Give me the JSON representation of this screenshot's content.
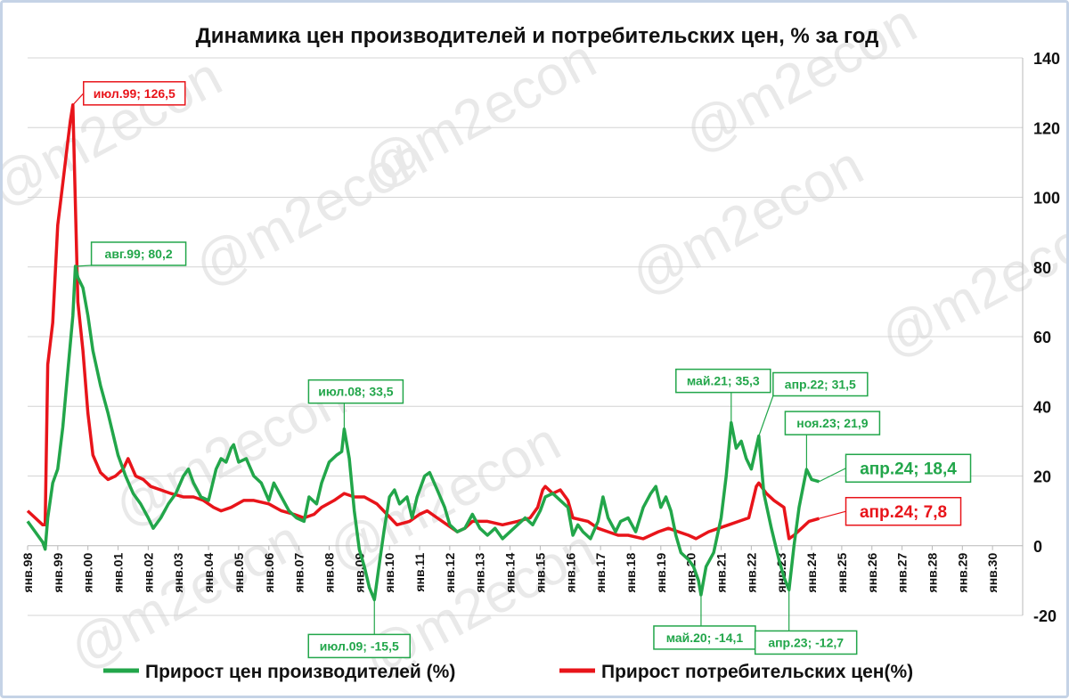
{
  "chart_data": {
    "type": "line",
    "title": "Динамика цен производителей и потребительских цен, % за год",
    "ylim": [
      -20,
      140
    ],
    "y_ticks": [
      "-20",
      "0",
      "20",
      "40",
      "60",
      "80",
      "100",
      "120",
      "140"
    ],
    "y_tick_values": [
      -20,
      0,
      20,
      40,
      60,
      80,
      100,
      120,
      140
    ],
    "y_axis_side": "right",
    "grid": "horizontal",
    "x_ticks": [
      "янв.98",
      "янв.99",
      "янв.00",
      "янв.01",
      "янв.02",
      "янв.03",
      "янв.04",
      "янв.05",
      "янв.06",
      "янв.07",
      "янв.08",
      "янв.09",
      "янв.10",
      "янв.11",
      "янв.12",
      "янв.13",
      "янв.14",
      "янв.15",
      "янв.16",
      "янв.17",
      "янв.18",
      "янв.19",
      "янв.20",
      "янв.21",
      "янв.22",
      "янв.23",
      "янв.24",
      "янв.25",
      "янв.26",
      "янв.27",
      "янв.28",
      "янв.29",
      "янв.30"
    ],
    "x_tick_years": [
      1998,
      1999,
      2000,
      2001,
      2002,
      2003,
      2004,
      2005,
      2006,
      2007,
      2008,
      2009,
      2010,
      2011,
      2012,
      2013,
      2014,
      2015,
      2016,
      2017,
      2018,
      2019,
      2020,
      2021,
      2022,
      2023,
      2024,
      2025,
      2026,
      2027,
      2028,
      2029,
      2030
    ],
    "legend_position": "bottom",
    "series": [
      {
        "name": "Прирост цен производителей (%)",
        "color": "#22a64a",
        "points": [
          [
            "1998-01",
            7
          ],
          [
            "1998-04",
            4
          ],
          [
            "1998-07",
            1
          ],
          [
            "1998-08",
            -1
          ],
          [
            "1998-09",
            8
          ],
          [
            "1998-11",
            18
          ],
          [
            "1999-01",
            22
          ],
          [
            "1999-03",
            34
          ],
          [
            "1999-05",
            50
          ],
          [
            "1999-07",
            66
          ],
          [
            "1999-08",
            80.2
          ],
          [
            "1999-09",
            77
          ],
          [
            "1999-11",
            74
          ],
          [
            "2000-01",
            66
          ],
          [
            "2000-03",
            56
          ],
          [
            "2000-06",
            46
          ],
          [
            "2000-09",
            38
          ],
          [
            "2001-01",
            26
          ],
          [
            "2001-04",
            20
          ],
          [
            "2001-07",
            15
          ],
          [
            "2001-10",
            12
          ],
          [
            "2002-01",
            8
          ],
          [
            "2002-03",
            5
          ],
          [
            "2002-06",
            8
          ],
          [
            "2002-09",
            12
          ],
          [
            "2002-12",
            15
          ],
          [
            "2003-03",
            20
          ],
          [
            "2003-05",
            22
          ],
          [
            "2003-07",
            18
          ],
          [
            "2003-10",
            14
          ],
          [
            "2004-01",
            13
          ],
          [
            "2004-04",
            22
          ],
          [
            "2004-06",
            25
          ],
          [
            "2004-08",
            24
          ],
          [
            "2004-10",
            28
          ],
          [
            "2004-11",
            29
          ],
          [
            "2005-01",
            24
          ],
          [
            "2005-04",
            25
          ],
          [
            "2005-07",
            20
          ],
          [
            "2005-10",
            18
          ],
          [
            "2006-01",
            13
          ],
          [
            "2006-03",
            18
          ],
          [
            "2006-06",
            14
          ],
          [
            "2006-09",
            10
          ],
          [
            "2006-12",
            8
          ],
          [
            "2007-03",
            7
          ],
          [
            "2007-05",
            14
          ],
          [
            "2007-08",
            12
          ],
          [
            "2007-10",
            18
          ],
          [
            "2008-01",
            24
          ],
          [
            "2008-04",
            26
          ],
          [
            "2008-06",
            27
          ],
          [
            "2008-07",
            33.5
          ],
          [
            "2008-09",
            25
          ],
          [
            "2008-11",
            10
          ],
          [
            "2009-01",
            -1
          ],
          [
            "2009-03",
            -6
          ],
          [
            "2009-05",
            -12
          ],
          [
            "2009-07",
            -15.5
          ],
          [
            "2009-09",
            -5
          ],
          [
            "2009-11",
            5
          ],
          [
            "2010-01",
            14
          ],
          [
            "2010-03",
            16
          ],
          [
            "2010-05",
            12
          ],
          [
            "2010-08",
            14
          ],
          [
            "2010-10",
            8
          ],
          [
            "2010-12",
            14
          ],
          [
            "2011-03",
            20
          ],
          [
            "2011-05",
            21
          ],
          [
            "2011-08",
            16
          ],
          [
            "2011-11",
            11
          ],
          [
            "2012-01",
            6
          ],
          [
            "2012-04",
            4
          ],
          [
            "2012-07",
            5
          ],
          [
            "2012-10",
            9
          ],
          [
            "2013-01",
            5
          ],
          [
            "2013-04",
            3
          ],
          [
            "2013-07",
            5
          ],
          [
            "2013-10",
            2
          ],
          [
            "2014-01",
            4
          ],
          [
            "2014-04",
            6
          ],
          [
            "2014-07",
            8
          ],
          [
            "2014-10",
            6
          ],
          [
            "2015-01",
            10
          ],
          [
            "2015-03",
            14
          ],
          [
            "2015-06",
            15
          ],
          [
            "2015-09",
            13
          ],
          [
            "2015-12",
            11
          ],
          [
            "2016-02",
            3
          ],
          [
            "2016-04",
            6
          ],
          [
            "2016-06",
            4
          ],
          [
            "2016-09",
            2
          ],
          [
            "2016-12",
            7
          ],
          [
            "2017-02",
            14
          ],
          [
            "2017-04",
            8
          ],
          [
            "2017-07",
            4
          ],
          [
            "2017-09",
            7
          ],
          [
            "2017-12",
            8
          ],
          [
            "2018-03",
            4
          ],
          [
            "2018-06",
            11
          ],
          [
            "2018-09",
            15
          ],
          [
            "2018-11",
            17
          ],
          [
            "2019-01",
            11
          ],
          [
            "2019-03",
            14
          ],
          [
            "2019-05",
            10
          ],
          [
            "2019-07",
            3
          ],
          [
            "2019-09",
            -2
          ],
          [
            "2019-12",
            -4
          ],
          [
            "2020-02",
            -6
          ],
          [
            "2020-04",
            -10
          ],
          [
            "2020-05",
            -14.1
          ],
          [
            "2020-07",
            -6
          ],
          [
            "2020-10",
            -2
          ],
          [
            "2021-01",
            8
          ],
          [
            "2021-03",
            20
          ],
          [
            "2021-05",
            35.3
          ],
          [
            "2021-07",
            28
          ],
          [
            "2021-09",
            30
          ],
          [
            "2021-11",
            25
          ],
          [
            "2022-01",
            22
          ],
          [
            "2022-04",
            31.5
          ],
          [
            "2022-06",
            15
          ],
          [
            "2022-09",
            5
          ],
          [
            "2022-12",
            -4
          ],
          [
            "2023-02",
            -9
          ],
          [
            "2023-04",
            -12.7
          ],
          [
            "2023-06",
            0
          ],
          [
            "2023-08",
            11
          ],
          [
            "2023-11",
            21.9
          ],
          [
            "2024-01",
            19
          ],
          [
            "2024-04",
            18.4
          ]
        ],
        "callouts": [
          {
            "label": "авг.99; 80,2",
            "at": "1999-08",
            "value": 80.2
          },
          {
            "label": "июл.08; 33,5",
            "at": "2008-07",
            "value": 33.5
          },
          {
            "label": "июл.09; -15,5",
            "at": "2009-07",
            "value": -15.5
          },
          {
            "label": "май.20; -14,1",
            "at": "2020-05",
            "value": -14.1
          },
          {
            "label": "май.21; 35,3",
            "at": "2021-05",
            "value": 35.3
          },
          {
            "label": "апр.22; 31,5",
            "at": "2022-04",
            "value": 31.5
          },
          {
            "label": "апр.23; -12,7",
            "at": "2023-04",
            "value": -12.7
          },
          {
            "label": "ноя.23; 21,9",
            "at": "2023-11",
            "value": 21.9
          },
          {
            "label": "апр.24; 18,4",
            "at": "2024-04",
            "value": 18.4,
            "large": true
          }
        ]
      },
      {
        "name": "Прирост потребительских цен(%)",
        "color": "#e8141a",
        "points": [
          [
            "1998-01",
            10
          ],
          [
            "1998-04",
            8
          ],
          [
            "1998-07",
            6
          ],
          [
            "1998-08",
            6
          ],
          [
            "1998-09",
            52
          ],
          [
            "1998-11",
            64
          ],
          [
            "1999-01",
            92
          ],
          [
            "1999-03",
            104
          ],
          [
            "1999-05",
            116
          ],
          [
            "1999-06",
            122
          ],
          [
            "1999-07",
            126.5
          ],
          [
            "1999-09",
            70
          ],
          [
            "1999-11",
            56
          ],
          [
            "2000-01",
            38
          ],
          [
            "2000-03",
            26
          ],
          [
            "2000-06",
            21
          ],
          [
            "2000-09",
            19
          ],
          [
            "2000-12",
            20
          ],
          [
            "2001-03",
            22
          ],
          [
            "2001-05",
            25
          ],
          [
            "2001-08",
            20
          ],
          [
            "2001-11",
            19
          ],
          [
            "2002-02",
            17
          ],
          [
            "2002-06",
            16
          ],
          [
            "2002-10",
            15
          ],
          [
            "2003-03",
            14
          ],
          [
            "2003-07",
            14
          ],
          [
            "2003-11",
            13
          ],
          [
            "2004-03",
            11
          ],
          [
            "2004-06",
            10
          ],
          [
            "2004-10",
            11
          ],
          [
            "2005-03",
            13
          ],
          [
            "2005-07",
            13
          ],
          [
            "2006-01",
            12
          ],
          [
            "2006-06",
            10
          ],
          [
            "2006-11",
            9
          ],
          [
            "2007-03",
            8
          ],
          [
            "2007-07",
            9
          ],
          [
            "2007-10",
            11
          ],
          [
            "2008-03",
            13
          ],
          [
            "2008-07",
            15
          ],
          [
            "2008-11",
            14
          ],
          [
            "2009-03",
            14
          ],
          [
            "2009-08",
            12
          ],
          [
            "2009-12",
            9
          ],
          [
            "2010-04",
            6
          ],
          [
            "2010-09",
            7
          ],
          [
            "2011-01",
            9
          ],
          [
            "2011-04",
            10
          ],
          [
            "2011-08",
            8
          ],
          [
            "2011-12",
            6
          ],
          [
            "2012-04",
            4
          ],
          [
            "2012-07",
            5
          ],
          [
            "2012-10",
            7
          ],
          [
            "2013-04",
            7
          ],
          [
            "2013-10",
            6
          ],
          [
            "2014-04",
            7
          ],
          [
            "2014-09",
            8
          ],
          [
            "2014-12",
            11
          ],
          [
            "2015-02",
            16
          ],
          [
            "2015-03",
            17
          ],
          [
            "2015-06",
            15
          ],
          [
            "2015-09",
            16
          ],
          [
            "2015-12",
            13
          ],
          [
            "2016-02",
            8
          ],
          [
            "2016-08",
            7
          ],
          [
            "2016-12",
            5
          ],
          [
            "2017-04",
            4
          ],
          [
            "2017-08",
            3
          ],
          [
            "2017-12",
            3
          ],
          [
            "2018-06",
            2
          ],
          [
            "2018-12",
            4
          ],
          [
            "2019-04",
            5
          ],
          [
            "2019-08",
            4
          ],
          [
            "2019-12",
            3
          ],
          [
            "2020-03",
            2
          ],
          [
            "2020-08",
            4
          ],
          [
            "2020-12",
            5
          ],
          [
            "2021-04",
            6
          ],
          [
            "2021-08",
            7
          ],
          [
            "2021-12",
            8
          ],
          [
            "2022-03",
            17
          ],
          [
            "2022-04",
            18
          ],
          [
            "2022-07",
            15
          ],
          [
            "2022-10",
            13
          ],
          [
            "2022-12",
            12
          ],
          [
            "2023-02",
            11
          ],
          [
            "2023-04",
            2
          ],
          [
            "2023-06",
            3
          ],
          [
            "2023-09",
            5
          ],
          [
            "2023-12",
            7
          ],
          [
            "2024-04",
            7.8
          ]
        ],
        "callouts": [
          {
            "label": "июл.99; 126,5",
            "at": "1999-07",
            "value": 126.5
          },
          {
            "label": "апр.24; 7,8",
            "at": "2024-04",
            "value": 7.8,
            "large": true
          }
        ]
      }
    ],
    "watermark": "@m2econ"
  }
}
